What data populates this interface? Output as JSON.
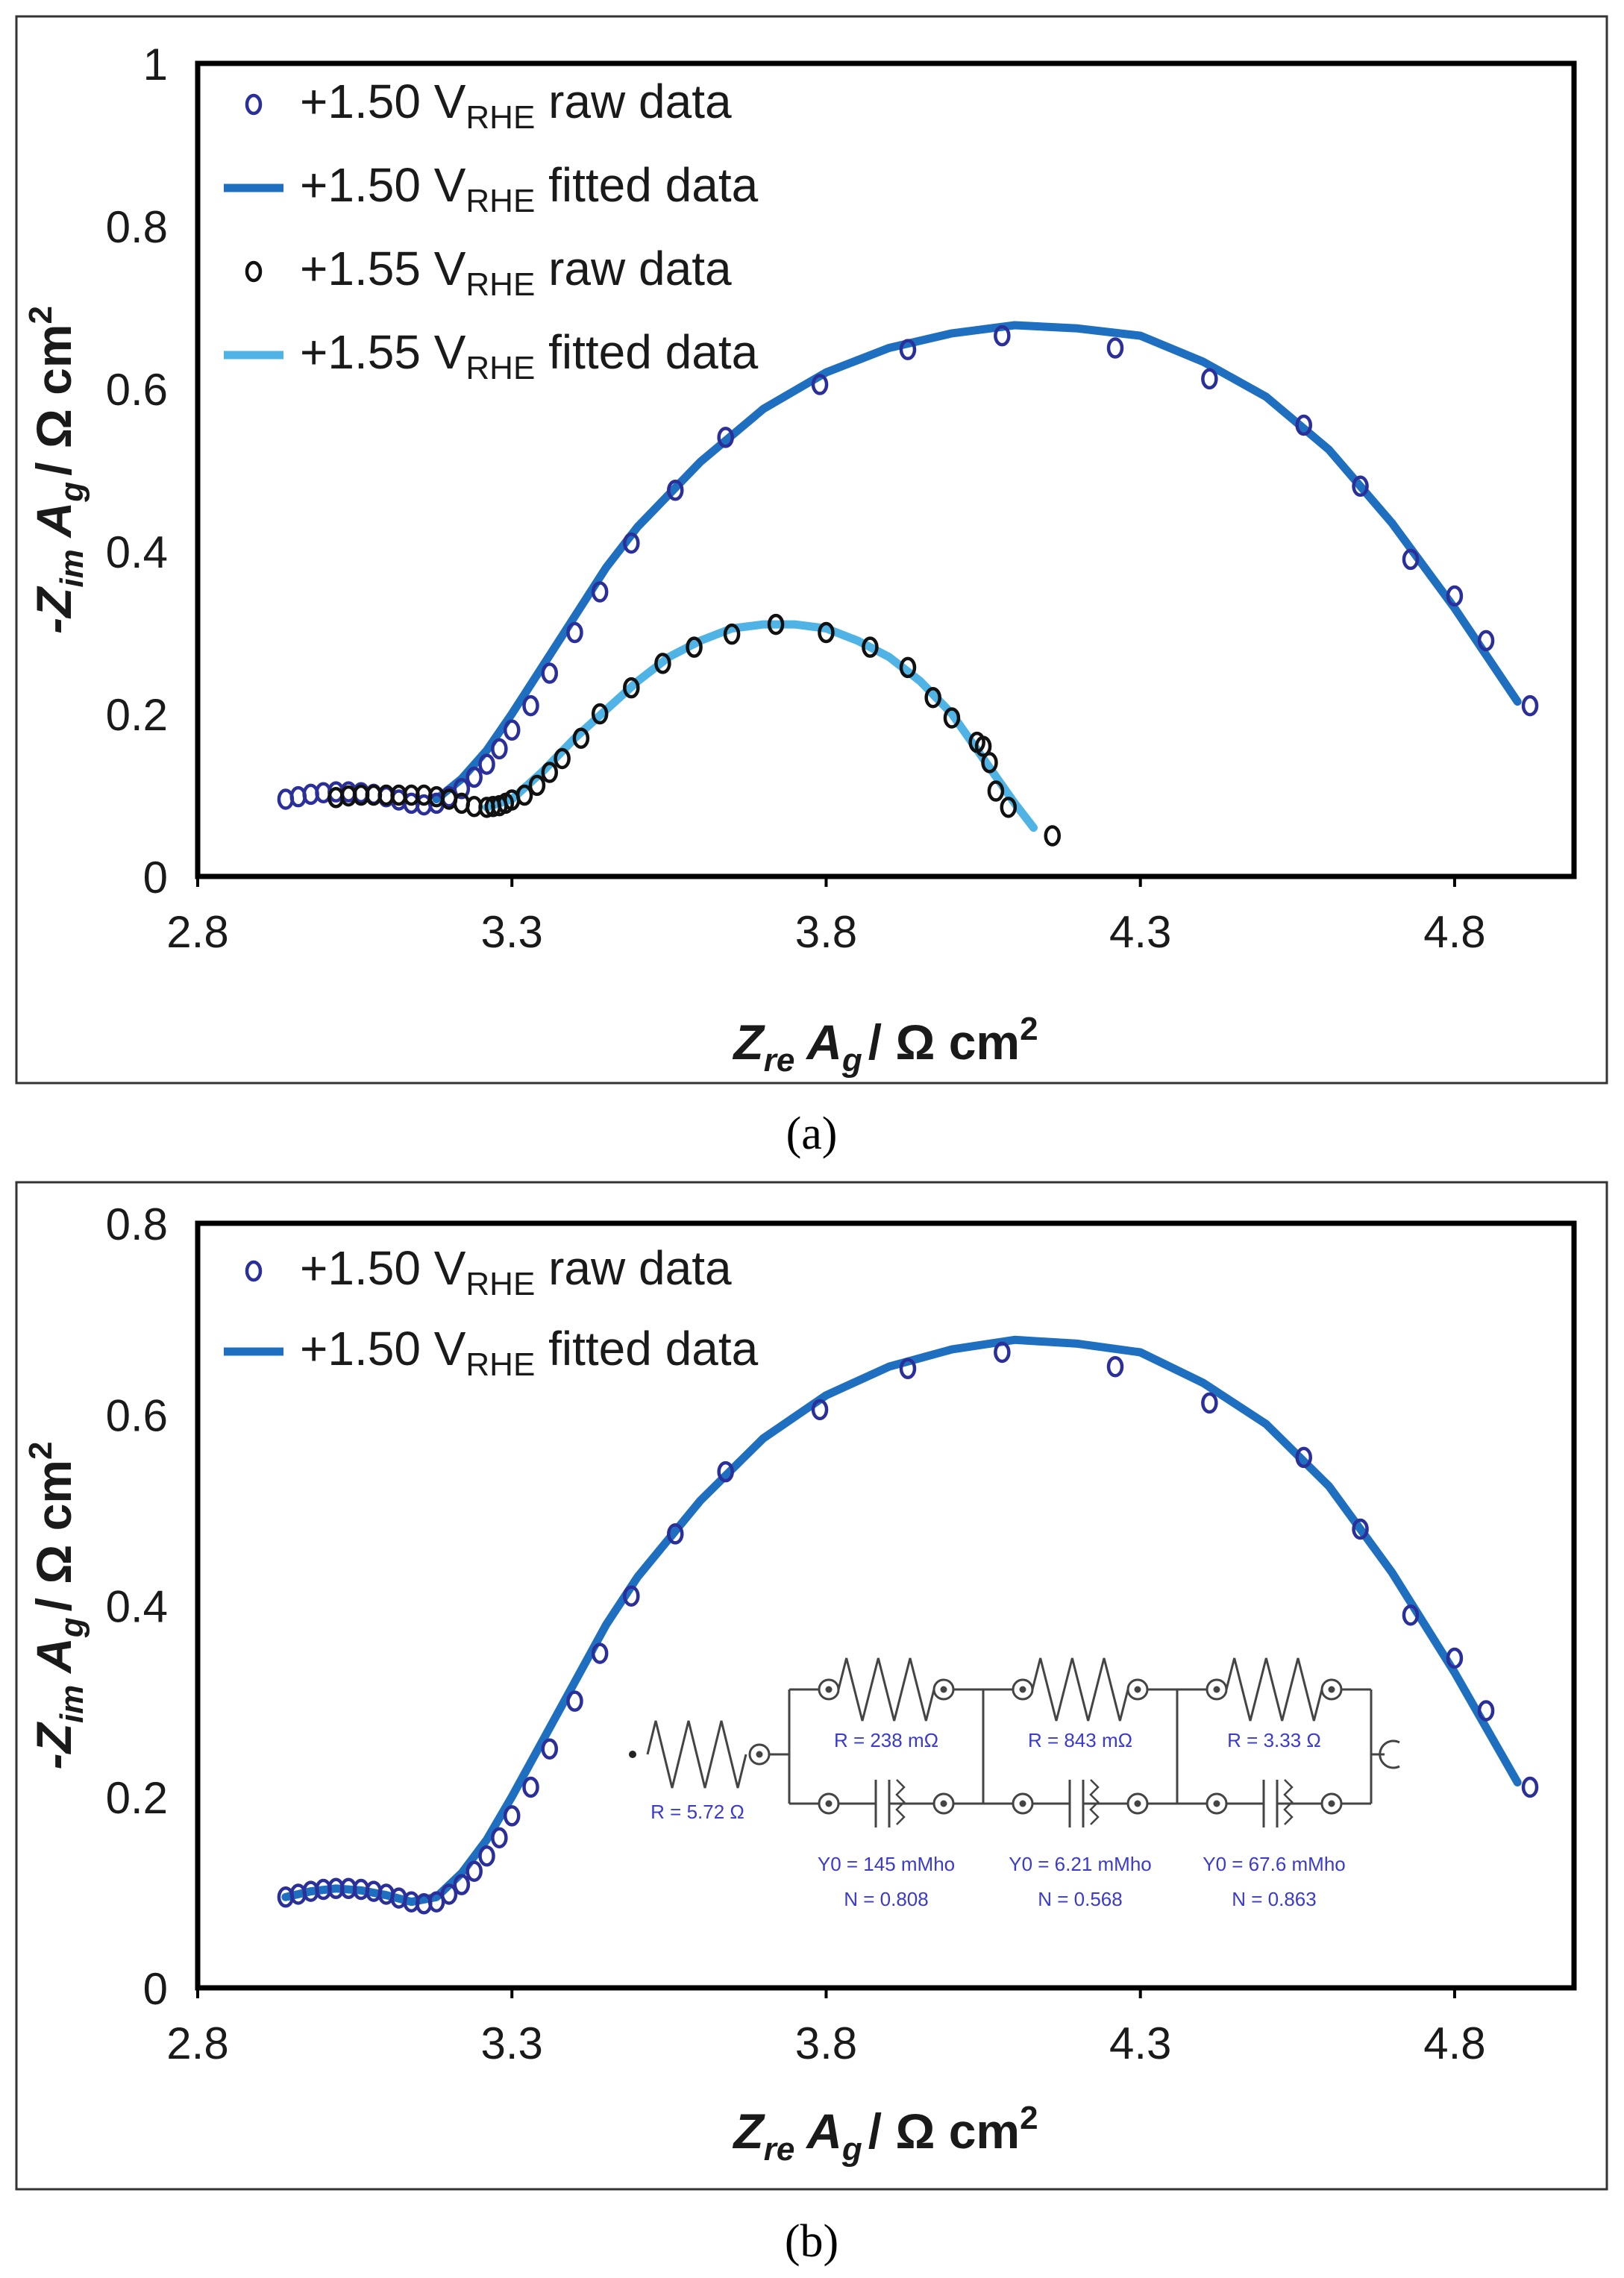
{
  "captions": [
    "(a)",
    "(b)"
  ],
  "colors": {
    "raw_150": "#2a2f9a",
    "fit_150": "#1f6fc0",
    "raw_155": "#111111",
    "fit_155": "#4fb3e6",
    "circuit": "#3a3acf"
  },
  "chart_data": [
    {
      "type": "scatter",
      "panel": "a",
      "xlabel": {
        "main": "Z",
        "sub": "re",
        "mid": " A",
        "sub2": "g",
        "unit": "/ Ω cm",
        "sup": "2"
      },
      "ylabel": {
        "main": "-Z",
        "sub": "im",
        "mid": " A",
        "sub2": "g",
        "unit": "/ Ω cm",
        "sup": "2"
      },
      "xlim": [
        2.8,
        4.99
      ],
      "ylim": [
        0,
        1.0
      ],
      "xticks": [
        "2.8",
        "3.3",
        "3.8",
        "4.3",
        "4.8"
      ],
      "yticks": [
        "0",
        "0.2",
        "0.4",
        "0.6",
        "0.8",
        "1"
      ],
      "legend": [
        {
          "pre": "+1.50 V",
          "sub": "RHE",
          "post": " raw data",
          "style": "marker",
          "color": "#2a2f9a"
        },
        {
          "pre": "+1.50 V",
          "sub": "RHE",
          "post": " fitted data",
          "style": "line",
          "color": "#1f6fc0"
        },
        {
          "pre": "+1.55 V",
          "sub": "RHE",
          "post": " raw data",
          "style": "marker",
          "color": "#111111"
        },
        {
          "pre": "+1.55 V",
          "sub": "RHE",
          "post": " fitted data",
          "style": "line",
          "color": "#4fb3e6"
        }
      ],
      "series": [
        {
          "name": "+1.50 VRHE raw data",
          "kind": "markers",
          "color": "#2a2f9a",
          "x": [
            2.94,
            2.96,
            2.98,
            3.0,
            3.02,
            3.04,
            3.06,
            3.08,
            3.1,
            3.12,
            3.14,
            3.16,
            3.18,
            3.2,
            3.22,
            3.24,
            3.26,
            3.28,
            3.3,
            3.33,
            3.36,
            3.4,
            3.44,
            3.49,
            3.56,
            3.64,
            3.79,
            3.93,
            4.08,
            4.26,
            4.41,
            4.56,
            4.65,
            4.73,
            4.8,
            4.85,
            4.92
          ],
          "y": [
            0.095,
            0.098,
            0.101,
            0.103,
            0.104,
            0.104,
            0.103,
            0.101,
            0.098,
            0.094,
            0.09,
            0.088,
            0.09,
            0.098,
            0.108,
            0.122,
            0.138,
            0.157,
            0.18,
            0.21,
            0.25,
            0.3,
            0.35,
            0.41,
            0.475,
            0.54,
            0.605,
            0.648,
            0.665,
            0.65,
            0.612,
            0.555,
            0.48,
            0.39,
            0.345,
            0.29,
            0.21
          ]
        },
        {
          "name": "+1.50 VRHE fitted data",
          "kind": "line",
          "color": "#1f6fc0",
          "x": [
            3.18,
            3.22,
            3.26,
            3.3,
            3.35,
            3.4,
            3.45,
            3.5,
            3.6,
            3.7,
            3.8,
            3.9,
            4.0,
            4.1,
            4.2,
            4.3,
            4.4,
            4.5,
            4.6,
            4.7,
            4.8,
            4.9
          ],
          "y": [
            0.095,
            0.12,
            0.155,
            0.2,
            0.26,
            0.32,
            0.38,
            0.43,
            0.51,
            0.575,
            0.62,
            0.65,
            0.668,
            0.678,
            0.674,
            0.665,
            0.633,
            0.59,
            0.525,
            0.435,
            0.33,
            0.215
          ]
        },
        {
          "name": "+1.55 VRHE raw data",
          "kind": "markers",
          "color": "#111111",
          "x": [
            3.02,
            3.04,
            3.06,
            3.08,
            3.1,
            3.12,
            3.14,
            3.16,
            3.18,
            3.2,
            3.22,
            3.24,
            3.26,
            3.27,
            3.28,
            3.29,
            3.3,
            3.32,
            3.34,
            3.36,
            3.38,
            3.41,
            3.44,
            3.49,
            3.54,
            3.59,
            3.65,
            3.72,
            3.8,
            3.87,
            3.93,
            3.97,
            4.0,
            4.04,
            4.05,
            4.06,
            4.07,
            4.09,
            4.16
          ],
          "y": [
            0.097,
            0.099,
            0.1,
            0.1,
            0.1,
            0.1,
            0.1,
            0.1,
            0.098,
            0.095,
            0.09,
            0.086,
            0.085,
            0.086,
            0.087,
            0.09,
            0.094,
            0.1,
            0.112,
            0.128,
            0.145,
            0.17,
            0.2,
            0.232,
            0.262,
            0.282,
            0.298,
            0.31,
            0.3,
            0.282,
            0.257,
            0.22,
            0.195,
            0.165,
            0.16,
            0.14,
            0.105,
            0.085,
            0.05
          ]
        },
        {
          "name": "+1.55 VRHE fitted data",
          "kind": "line",
          "color": "#4fb3e6",
          "x": [
            3.26,
            3.3,
            3.35,
            3.4,
            3.45,
            3.5,
            3.55,
            3.6,
            3.65,
            3.7,
            3.75,
            3.8,
            3.85,
            3.9,
            3.95,
            4.0,
            4.05,
            4.1,
            4.13
          ],
          "y": [
            0.085,
            0.095,
            0.13,
            0.17,
            0.205,
            0.24,
            0.27,
            0.29,
            0.305,
            0.31,
            0.31,
            0.305,
            0.29,
            0.27,
            0.24,
            0.2,
            0.145,
            0.09,
            0.06
          ]
        }
      ]
    },
    {
      "type": "scatter",
      "panel": "b",
      "xlabel": {
        "main": "Z",
        "sub": "re",
        "mid": " A",
        "sub2": "g",
        "unit": "/ Ω cm",
        "sup": "2"
      },
      "ylabel": {
        "main": "-Z",
        "sub": "im",
        "mid": " A",
        "sub2": "g",
        "unit": "/ Ω cm",
        "sup": "2"
      },
      "xlim": [
        2.8,
        4.99
      ],
      "ylim": [
        0,
        0.8
      ],
      "xticks": [
        "2.8",
        "3.3",
        "3.8",
        "4.3",
        "4.8"
      ],
      "yticks": [
        "0",
        "0.2",
        "0.4",
        "0.6",
        "0.8"
      ],
      "legend": [
        {
          "pre": "+1.50 V",
          "sub": "RHE",
          "post": " raw data",
          "style": "marker",
          "color": "#2a2f9a"
        },
        {
          "pre": "+1.50 V",
          "sub": "RHE",
          "post": " fitted data",
          "style": "line",
          "color": "#1f6fc0"
        }
      ],
      "series": [
        {
          "name": "+1.50 VRHE raw data",
          "kind": "markers",
          "color": "#2a2f9a",
          "x": [
            2.94,
            2.96,
            2.98,
            3.0,
            3.02,
            3.04,
            3.06,
            3.08,
            3.1,
            3.12,
            3.14,
            3.16,
            3.18,
            3.2,
            3.22,
            3.24,
            3.26,
            3.28,
            3.3,
            3.33,
            3.36,
            3.4,
            3.44,
            3.49,
            3.56,
            3.64,
            3.79,
            3.93,
            4.08,
            4.26,
            4.41,
            4.56,
            4.65,
            4.73,
            4.8,
            4.85,
            4.92
          ],
          "y": [
            0.095,
            0.098,
            0.101,
            0.103,
            0.104,
            0.104,
            0.103,
            0.101,
            0.098,
            0.094,
            0.09,
            0.088,
            0.09,
            0.098,
            0.108,
            0.122,
            0.138,
            0.157,
            0.18,
            0.21,
            0.25,
            0.3,
            0.35,
            0.41,
            0.475,
            0.54,
            0.605,
            0.648,
            0.665,
            0.65,
            0.612,
            0.555,
            0.48,
            0.39,
            0.345,
            0.29,
            0.21
          ]
        },
        {
          "name": "+1.50 VRHE fitted data",
          "kind": "line",
          "color": "#1f6fc0",
          "x": [
            2.94,
            2.98,
            3.02,
            3.06,
            3.1,
            3.14,
            3.18,
            3.22,
            3.26,
            3.3,
            3.35,
            3.4,
            3.45,
            3.5,
            3.6,
            3.7,
            3.8,
            3.9,
            4.0,
            4.1,
            4.2,
            4.3,
            4.4,
            4.5,
            4.6,
            4.7,
            4.8,
            4.9
          ],
          "y": [
            0.095,
            0.101,
            0.104,
            0.102,
            0.097,
            0.09,
            0.095,
            0.12,
            0.155,
            0.2,
            0.26,
            0.32,
            0.38,
            0.43,
            0.51,
            0.575,
            0.62,
            0.65,
            0.668,
            0.678,
            0.674,
            0.665,
            0.633,
            0.59,
            0.525,
            0.435,
            0.33,
            0.215
          ]
        }
      ],
      "inset_circuit": {
        "r0": "R = 5.72 Ω",
        "elements": [
          {
            "r": "R = 238 mΩ",
            "y0": "Y0 = 145 mMho",
            "n": "N = 0.808"
          },
          {
            "r": "R = 843 mΩ",
            "y0": "Y0 = 6.21 mMho",
            "n": "N = 0.568"
          },
          {
            "r": "R = 3.33 Ω",
            "y0": "Y0 = 67.6 mMho",
            "n": "N = 0.863"
          }
        ]
      }
    }
  ]
}
